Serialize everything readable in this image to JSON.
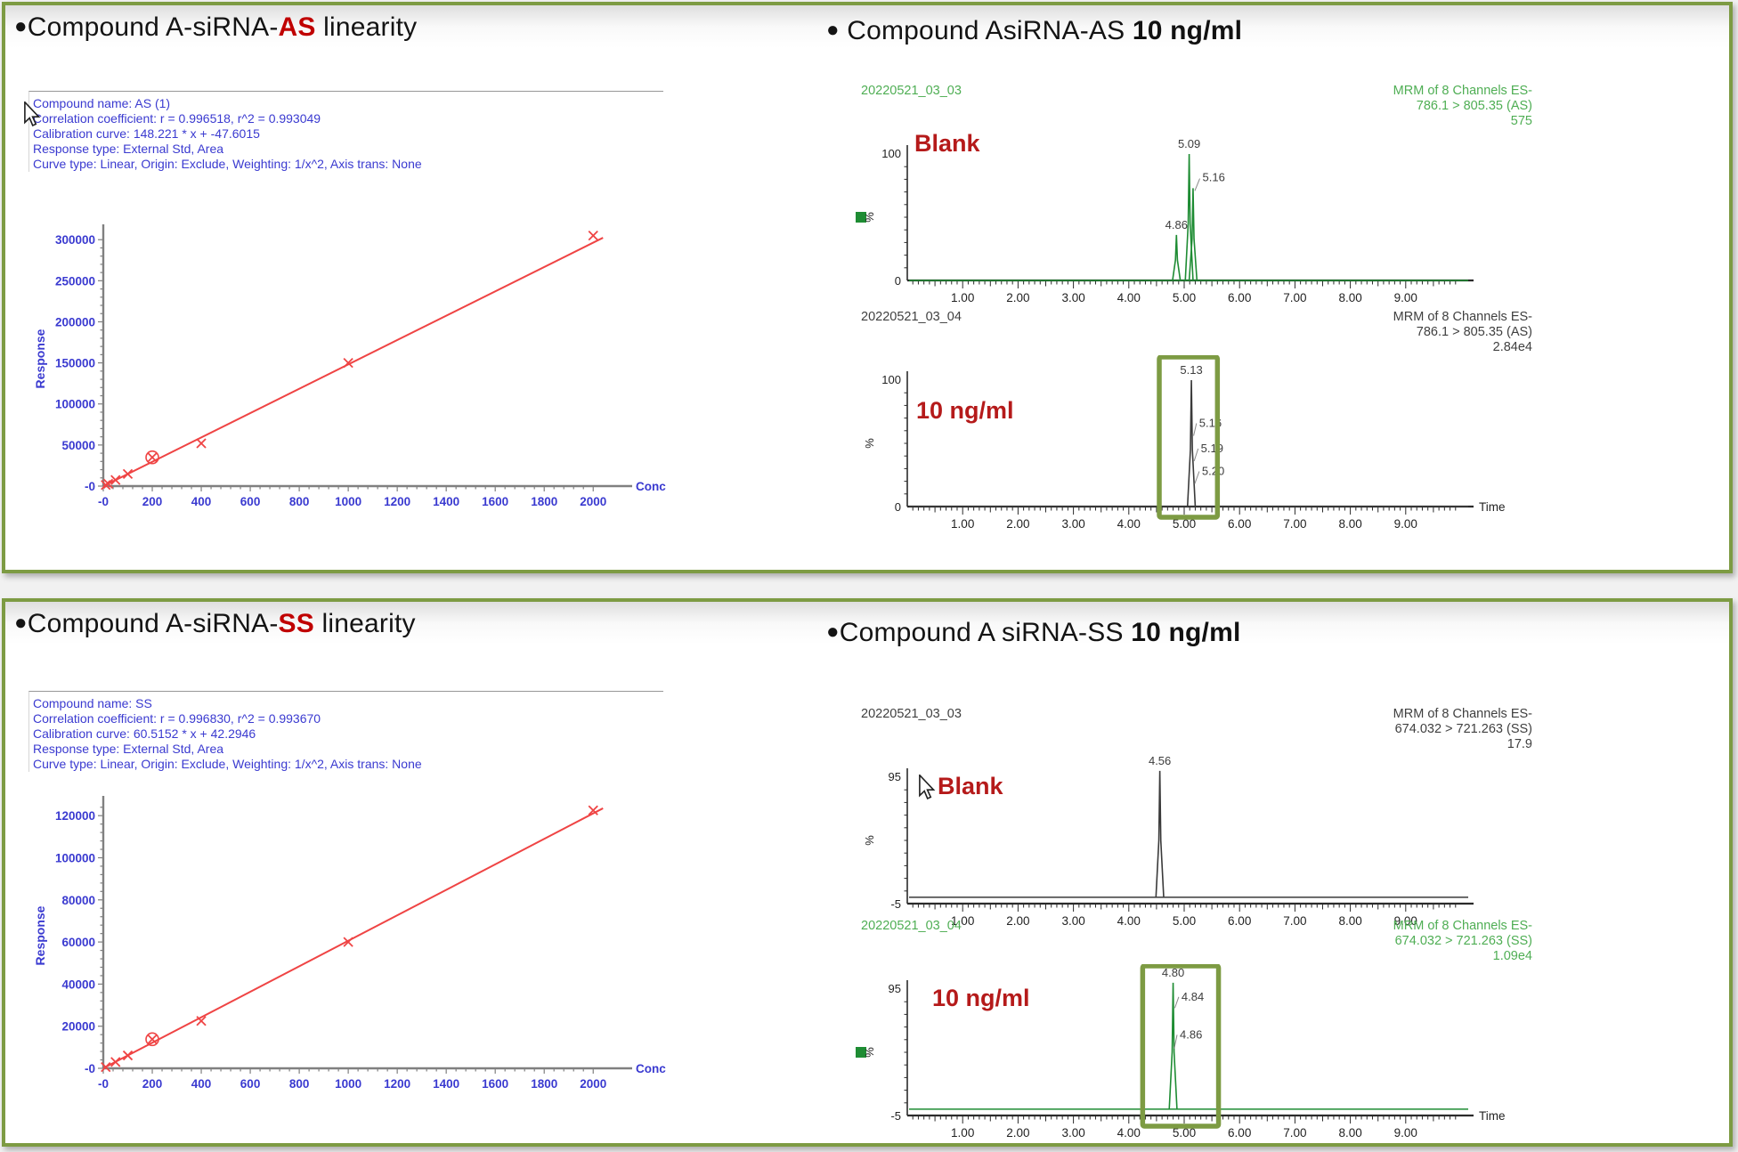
{
  "colors": {
    "panel_border": "#7d9b43",
    "highlight_box": "#7d9b43",
    "annotation_red": "#b51a1a",
    "title_em_red": "#c00000",
    "stats_blue": "#3a3ad0",
    "axis_blue": "#3a3ad0",
    "curve_red": "#ef4444",
    "trace_green": "#1e8c33",
    "text_green": "#4fae54",
    "trace_black": "#3a3a3a",
    "text_black": "#3f3f3f"
  },
  "panels": [
    {
      "linearity_title": {
        "bullet": "●",
        "pre": "Compound A-siRNA-",
        "em": "AS",
        "post": " linearity"
      },
      "chrom_title": {
        "bullet": "●",
        "pre": " Compound AsiRNA-AS ",
        "em": "10 ng/ml"
      },
      "stats": [
        "Compound name: AS (1)",
        "Correlation coefficient: r = 0.996518, r^2 = 0.993049",
        "Calibration curve: 148.221 * x + -47.6015",
        "Response type: External Std, Area",
        "Curve type: Linear, Origin: Exclude, Weighting: 1/x^2, Axis trans: None"
      ]
    },
    {
      "linearity_title": {
        "bullet": "●",
        "pre": "Compound A-siRNA-",
        "em": "SS",
        "post": " linearity"
      },
      "chrom_title": {
        "bullet": "●",
        "pre": "Compound A siRNA-SS ",
        "em": "10 ng/ml"
      },
      "stats": [
        "Compound name: SS",
        "Correlation coefficient: r = 0.996830, r^2 = 0.993670",
        "Calibration curve: 60.5152 * x + 42.2946",
        "Response type: External Std, Area",
        "Curve type: Linear, Origin: Exclude, Weighting: 1/x^2, Axis trans: None"
      ]
    }
  ],
  "chart_data": [
    {
      "id": "lin-as",
      "type": "scatter",
      "title": "Compound A-siRNA-AS linearity",
      "xlabel": "Conc",
      "ylabel": "Response",
      "xlim": [
        0,
        2050
      ],
      "ylim": [
        0,
        310000
      ],
      "x_major": 200,
      "x_minor": 40,
      "y_major": 50000,
      "y_minor": 10000,
      "x_tick_vals": [
        0,
        200,
        400,
        600,
        800,
        1000,
        1200,
        1400,
        1600,
        1800,
        2000
      ],
      "x_tick_labels": [
        "-0",
        "200",
        "400",
        "600",
        "800",
        "1000",
        "1200",
        "1400",
        "1600",
        "1800",
        "2000"
      ],
      "y_tick_vals": [
        0,
        50000,
        100000,
        150000,
        200000,
        250000,
        300000
      ],
      "y_tick_labels": [
        "-0",
        "50000",
        "100000",
        "150000",
        "200000",
        "250000",
        "300000"
      ],
      "x": [
        10,
        20,
        50,
        100,
        200,
        400,
        1000,
        2000
      ],
      "y": [
        1400,
        2900,
        7400,
        14800,
        35000,
        52000,
        150000,
        305000
      ],
      "excluded_index": 4,
      "fit": {
        "slope": 148.221,
        "intercept": -47.6015
      },
      "plot_top": 86,
      "plot_bottom": 372
    },
    {
      "id": "lin-ss",
      "type": "scatter",
      "title": "Compound A-siRNA-SS linearity",
      "xlabel": "Conc",
      "ylabel": "Response",
      "xlim": [
        0,
        2050
      ],
      "ylim": [
        0,
        126000
      ],
      "x_major": 200,
      "x_minor": 40,
      "y_major": 20000,
      "y_minor": 4000,
      "x_tick_vals": [
        0,
        200,
        400,
        600,
        800,
        1000,
        1200,
        1400,
        1600,
        1800,
        2000
      ],
      "x_tick_labels": [
        "-0",
        "200",
        "400",
        "600",
        "800",
        "1000",
        "1200",
        "1400",
        "1600",
        "1800",
        "2000"
      ],
      "y_tick_vals": [
        0,
        20000,
        40000,
        60000,
        80000,
        100000,
        120000
      ],
      "y_tick_labels": [
        "-0",
        "20000",
        "40000",
        "60000",
        "80000",
        "100000",
        "120000"
      ],
      "x": [
        10,
        50,
        100,
        200,
        400,
        1000,
        2000
      ],
      "y": [
        600,
        3000,
        6100,
        13800,
        22500,
        60000,
        122500
      ],
      "excluded_index": 3,
      "fit": {
        "slope": 60.5152,
        "intercept": 42.2946
      },
      "plot_top": 30,
      "plot_bottom": 328
    },
    {
      "id": "chrom-as-blank",
      "type": "chromatogram",
      "sample": "20220521_03_03",
      "header": [
        "MRM of 8 Channels ES-",
        "786.1 > 805.35 (AS)",
        "575"
      ],
      "color_key": "green",
      "ymax": 100,
      "ymin": 0,
      "ymax_label": "100",
      "ymin_label": "0",
      "yaxis_label": "%",
      "x_tick_vals": [
        1,
        2,
        3,
        4,
        5,
        6,
        7,
        8,
        9
      ],
      "x_tick_labels": [
        "1.00",
        "2.00",
        "3.00",
        "4.00",
        "5.00",
        "6.00",
        "7.00",
        "8.00",
        "9.00"
      ],
      "time_label": false,
      "legend_square": true,
      "annotation": "Blank",
      "cursor": false,
      "peaks": [
        {
          "rt": 4.86,
          "h": 36,
          "label": "4.86"
        },
        {
          "rt": 5.09,
          "h": 100,
          "label": "5.09"
        },
        {
          "rt": 5.16,
          "h": 73,
          "label": "5.16",
          "lx": 5.33,
          "ly": 82
        }
      ],
      "tail_labels": [],
      "highlight": null
    },
    {
      "id": "chrom-as-10",
      "type": "chromatogram",
      "sample": "20220521_03_04",
      "header": [
        "MRM of 8 Channels ES-",
        "786.1 > 805.35 (AS)",
        "2.84e4"
      ],
      "color_key": "black",
      "ymax": 100,
      "ymin": 0,
      "ymax_label": "100",
      "ymin_label": "0",
      "yaxis_label": "%",
      "x_tick_vals": [
        1,
        2,
        3,
        4,
        5,
        6,
        7,
        8,
        9
      ],
      "x_tick_labels": [
        "1.00",
        "2.00",
        "3.00",
        "4.00",
        "5.00",
        "6.00",
        "7.00",
        "8.00",
        "9.00"
      ],
      "time_label": true,
      "legend_square": false,
      "annotation": "10 ng/ml",
      "cursor": false,
      "peaks": [
        {
          "rt": 5.13,
          "h": 100,
          "label": "5.13"
        }
      ],
      "tail_labels": [
        {
          "text": "5.16",
          "x": 5.27,
          "y": 63,
          "ax": 5.17,
          "ay": 56
        },
        {
          "text": "5.19",
          "x": 5.3,
          "y": 43,
          "ax": 5.18,
          "ay": 36
        },
        {
          "text": "5.20",
          "x": 5.32,
          "y": 25,
          "ax": 5.19,
          "ay": 18
        }
      ],
      "highlight": {
        "t0": 4.55,
        "t1": 5.6
      }
    },
    {
      "id": "chrom-ss-blank",
      "type": "chromatogram",
      "sample": "20220521_03_03",
      "header": [
        "MRM of 8 Channels ES-",
        "674.032 > 721.263 (SS)",
        "17.9"
      ],
      "color_key": "black",
      "ymax": 95,
      "ymin": -5,
      "ymax_label": "95",
      "ymin_label": "-5",
      "yaxis_label": "%",
      "x_tick_vals": [
        1,
        2,
        3,
        4,
        5,
        6,
        7,
        8,
        9
      ],
      "x_tick_labels": [
        "1.00",
        "2.00",
        "3.00",
        "4.00",
        "5.00",
        "6.00",
        "7.00",
        "8.00",
        "9.00"
      ],
      "time_label": false,
      "legend_square": false,
      "annotation": "Blank",
      "cursor": true,
      "peaks": [
        {
          "rt": 4.56,
          "h": 100,
          "label": "4.56"
        }
      ],
      "tail_labels": [],
      "highlight": null
    },
    {
      "id": "chrom-ss-10",
      "type": "chromatogram",
      "sample": "20220521_03_04",
      "header": [
        "MRM of 8 Channels ES-",
        "674.032 > 721.263 (SS)",
        "1.09e4"
      ],
      "color_key": "green",
      "ymax": 95,
      "ymin": -5,
      "ymax_label": "95",
      "ymin_label": "-5",
      "yaxis_label": "%",
      "x_tick_vals": [
        1,
        2,
        3,
        4,
        5,
        6,
        7,
        8,
        9
      ],
      "x_tick_labels": [
        "1.00",
        "2.00",
        "3.00",
        "4.00",
        "5.00",
        "6.00",
        "7.00",
        "8.00",
        "9.00"
      ],
      "time_label": true,
      "legend_square": true,
      "annotation": "10 ng/ml",
      "cursor": false,
      "peaks": [
        {
          "rt": 4.8,
          "h": 100,
          "label": "4.80"
        }
      ],
      "tail_labels": [
        {
          "text": "4.84",
          "x": 4.95,
          "y": 86,
          "ax": 4.83,
          "ay": 80
        },
        {
          "text": "4.86",
          "x": 4.92,
          "y": 56,
          "ax": 4.82,
          "ay": 48
        }
      ],
      "highlight": {
        "t0": 4.25,
        "t1": 5.62
      }
    }
  ]
}
